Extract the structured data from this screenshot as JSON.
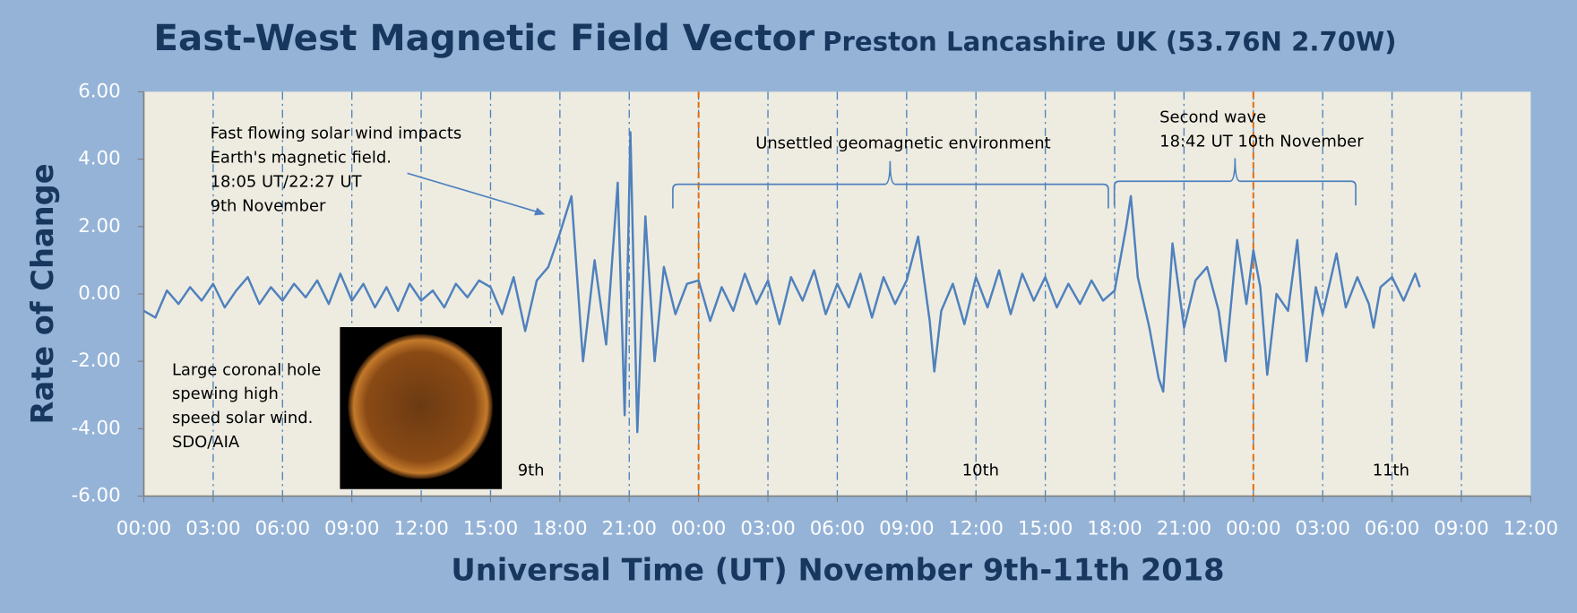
{
  "chart_data": {
    "type": "line",
    "title": "East-West Magnetic Field Vector",
    "subtitle": "Preston Lancashire UK (53.76N 2.70W)",
    "x_label": "Universal Time (UT) November 9th-11th 2018",
    "y_label": "Rate of Change",
    "color": "#4f81bd",
    "x": [
      0,
      0.5,
      1,
      1.5,
      2,
      2.5,
      3,
      3.5,
      4,
      4.5,
      5,
      5.5,
      6,
      6.5,
      7,
      7.5,
      8,
      8.5,
      9,
      9.5,
      10,
      10.5,
      11,
      11.5,
      12,
      12.5,
      13,
      13.5,
      14,
      14.5,
      15,
      15.5,
      16,
      16.5,
      17,
      17.5,
      18,
      18.5,
      19,
      19.5,
      20,
      20.5,
      20.8,
      21.05,
      21.35,
      21.7,
      22.1,
      22.5,
      23,
      23.5,
      24,
      24.5,
      25,
      25.5,
      26,
      26.5,
      27,
      27.5,
      28,
      28.5,
      29,
      29.5,
      30,
      30.5,
      31,
      31.5,
      32,
      32.5,
      33,
      33.5,
      34,
      34.2,
      34.5,
      35,
      35.5,
      36,
      36.5,
      37,
      37.5,
      38,
      38.5,
      39,
      39.5,
      40,
      40.5,
      41,
      41.5,
      42,
      42.5,
      42.7,
      43,
      43.5,
      43.9,
      44.1,
      44.5,
      45,
      45.5,
      46,
      46.5,
      46.8,
      47.3,
      47.7,
      48,
      48.3,
      48.6,
      49,
      49.5,
      49.9,
      50.3,
      50.7,
      51,
      51.6,
      52,
      52.5,
      53,
      53.2,
      53.5,
      54,
      54.5,
      55,
      55.2
    ],
    "values": [
      -0.5,
      -0.7,
      0.1,
      -0.3,
      0.2,
      -0.2,
      0.3,
      -0.4,
      0.1,
      0.5,
      -0.3,
      0.2,
      -0.2,
      0.3,
      -0.1,
      0.4,
      -0.3,
      0.6,
      -0.2,
      0.3,
      -0.4,
      0.2,
      -0.5,
      0.3,
      -0.2,
      0.1,
      -0.4,
      0.3,
      -0.1,
      0.4,
      0.2,
      -0.6,
      0.5,
      -1.1,
      0.4,
      0.8,
      1.8,
      2.9,
      -2.0,
      1.0,
      -1.5,
      3.3,
      -3.6,
      4.8,
      -4.1,
      2.3,
      -2.0,
      0.8,
      -0.6,
      0.3,
      0.4,
      -0.8,
      0.2,
      -0.5,
      0.6,
      -0.3,
      0.4,
      -0.9,
      0.5,
      -0.2,
      0.7,
      -0.6,
      0.3,
      -0.4,
      0.6,
      -0.7,
      0.5,
      -0.3,
      0.4,
      1.7,
      -0.8,
      -2.3,
      -0.5,
      0.3,
      -0.9,
      0.5,
      -0.4,
      0.7,
      -0.6,
      0.6,
      -0.2,
      0.5,
      -0.4,
      0.3,
      -0.3,
      0.4,
      -0.2,
      0.1,
      2.0,
      2.9,
      0.5,
      -1.0,
      -2.5,
      -2.9,
      1.5,
      -1.0,
      0.4,
      0.8,
      -0.5,
      -2.0,
      1.6,
      -0.3,
      1.3,
      0.2,
      -2.4,
      0.0,
      -0.5,
      1.6,
      -2.0,
      0.2,
      -0.6,
      1.2,
      -0.4,
      0.5,
      -0.3,
      -1.0,
      0.2,
      0.5,
      -0.2,
      0.6,
      0.2
    ],
    "xlim": [
      0,
      60
    ],
    "xticks": [
      {
        "value": 0,
        "label": "00:00"
      },
      {
        "value": 3,
        "label": "03:00"
      },
      {
        "value": 6,
        "label": "06:00"
      },
      {
        "value": 9,
        "label": "09:00"
      },
      {
        "value": 12,
        "label": "12:00"
      },
      {
        "value": 15,
        "label": "15:00"
      },
      {
        "value": 18,
        "label": "18:00"
      },
      {
        "value": 21,
        "label": "21:00"
      },
      {
        "value": 24,
        "label": "00:00"
      },
      {
        "value": 27,
        "label": "03:00"
      },
      {
        "value": 30,
        "label": "06:00"
      },
      {
        "value": 33,
        "label": "09:00"
      },
      {
        "value": 36,
        "label": "12:00"
      },
      {
        "value": 39,
        "label": "15:00"
      },
      {
        "value": 42,
        "label": "18:00"
      },
      {
        "value": 45,
        "label": "21:00"
      },
      {
        "value": 48,
        "label": "00:00"
      },
      {
        "value": 51,
        "label": "03:00"
      },
      {
        "value": 54,
        "label": "06:00"
      },
      {
        "value": 57,
        "label": "09:00"
      },
      {
        "value": 60,
        "label": "12:00"
      }
    ],
    "ylim": [
      -6,
      6
    ],
    "yticks": [
      {
        "value": -6,
        "label": "-6.00"
      },
      {
        "value": -4,
        "label": "-4.00"
      },
      {
        "value": -2,
        "label": "-2.00"
      },
      {
        "value": 0,
        "label": "0.00"
      },
      {
        "value": 2,
        "label": "2.00"
      },
      {
        "value": 4,
        "label": "4.00"
      },
      {
        "value": 6,
        "label": "6.00"
      }
    ],
    "grid": true,
    "day_lines": [
      24,
      48
    ],
    "day_labels": [
      "9th",
      "10th",
      "11th"
    ],
    "annotations": [
      {
        "lines": [
          "Fast flowing solar wind impacts",
          "Earth's magnetic field.",
          "18:05 UT/22:27 UT",
          "9th November"
        ]
      },
      {
        "lines": [
          "Unsettled geomagnetic environment"
        ]
      },
      {
        "lines": [
          "Second wave",
          "18:42 UT 10th November"
        ]
      },
      {
        "lines": [
          "Large coronal hole",
          "spewing high",
          "speed solar wind.",
          "SDO/AIA"
        ]
      }
    ]
  }
}
